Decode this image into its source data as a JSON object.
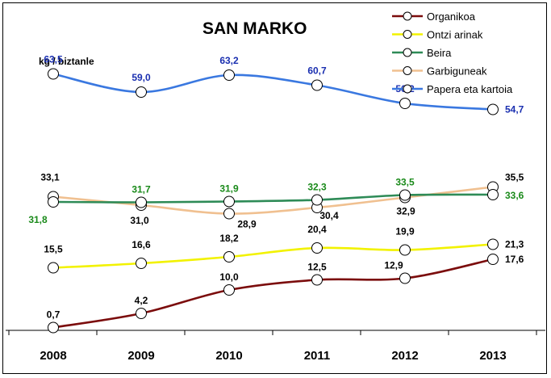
{
  "chart_data": {
    "type": "line",
    "title": "SAN MARKO",
    "ylabel": "kg / biztanle",
    "xlabel": "",
    "categories": [
      "2008",
      "2009",
      "2010",
      "2011",
      "2012",
      "2013"
    ],
    "ylim": [
      0,
      70
    ],
    "grid": false,
    "legend_position": "top-right",
    "series": [
      {
        "name": "Organikoa",
        "color": "#7b0c0c",
        "values": [
          0.7,
          4.2,
          10.0,
          12.5,
          12.9,
          17.6
        ],
        "labels": [
          "0,7",
          "4,2",
          "10,0",
          "12,5",
          "12,9",
          "17,6"
        ],
        "label_color": "#000000"
      },
      {
        "name": "Ontzi arinak",
        "color": "#f2f200",
        "values": [
          15.5,
          16.6,
          18.2,
          20.4,
          19.9,
          21.3
        ],
        "labels": [
          "15,5",
          "16,6",
          "18,2",
          "20,4",
          "19,9",
          "21,3"
        ],
        "label_color": "#000000"
      },
      {
        "name": "Beira",
        "color": "#2e8b57",
        "values": [
          31.8,
          31.7,
          31.9,
          32.3,
          33.5,
          33.6
        ],
        "labels": [
          "31,8",
          "31,7",
          "31,9",
          "32,3",
          "33,5",
          "33,6"
        ],
        "label_color": "#1a8a1a"
      },
      {
        "name": "Garbiguneak",
        "color": "#f0c090",
        "values": [
          33.1,
          31.0,
          28.9,
          30.4,
          32.9,
          35.5
        ],
        "labels": [
          "33,1",
          "31,0",
          "28,9",
          "30,4",
          "32,9",
          "35,5"
        ],
        "label_color": "#000000"
      },
      {
        "name": "Papera eta kartoia",
        "color": "#3a78e0",
        "values": [
          63.5,
          59.0,
          63.2,
          60.7,
          56.2,
          54.7
        ],
        "labels": [
          "63,5",
          "59,0",
          "63,2",
          "60,7",
          "56,2",
          "54,7"
        ],
        "label_color": "#1a2fb0"
      }
    ]
  }
}
